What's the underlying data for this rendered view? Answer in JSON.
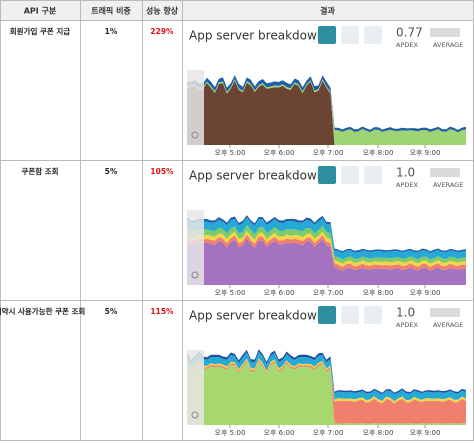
{
  "header": [
    "API 구분",
    "트래픽 비중",
    "성능 향상",
    "결과"
  ],
  "rows": [
    {
      "api": "회원가입 쿠폰 지급",
      "traffic": "1%",
      "improvement": "229%",
      "result": {
        "title": "App server breakdown",
        "apdex": "0.77",
        "apdex_label": "APDEX",
        "average_label": "AVERAGE",
        "time_labels": [
          "오후 5:00",
          "오후 6:00",
          "오후 7:00",
          "오후 8:00",
          "오후 9:00"
        ]
      }
    },
    {
      "api": "쿠폰함 조회",
      "traffic": "5%",
      "improvement": "105%",
      "result": {
        "title": "App server breakdown",
        "apdex": "1.0",
        "apdex_label": "APDEX",
        "average_label": "AVERAGE",
        "time_labels": [
          "오후 5:00",
          "오후 6:00",
          "오후 7:00",
          "오후 8:00",
          "오후 9:00"
        ]
      }
    },
    {
      "api": "예약시 사용가능한 쿠폰 조회",
      "traffic": "5%",
      "improvement": "115%",
      "result": {
        "title": "App server breakdown",
        "apdex": "1.0",
        "apdex_label": "APDEX",
        "average_label": "AVERAGE",
        "time_labels": [
          "오후 5:00",
          "오후 6:00",
          "오후 7:00",
          "오후 8:00",
          "오후 9:00"
        ]
      }
    }
  ]
}
